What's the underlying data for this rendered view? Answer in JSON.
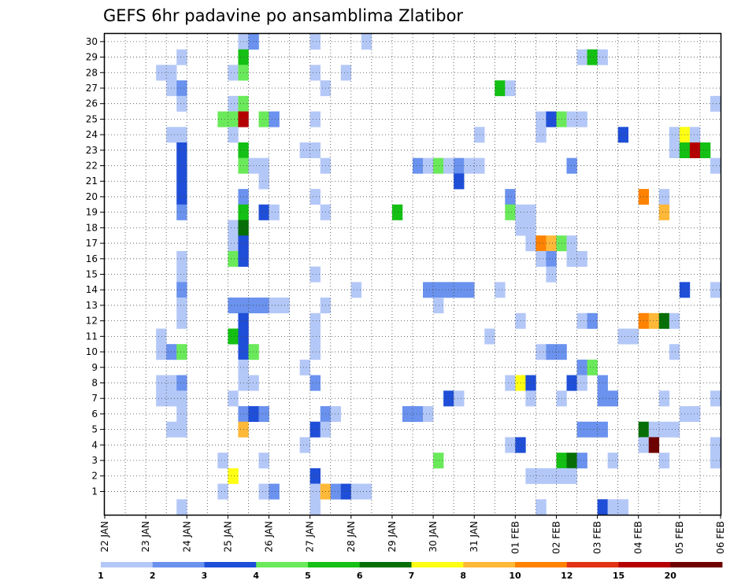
{
  "chart_data": {
    "type": "heatmap",
    "title": "GEFS 6hr padavine po ansamblima Zlatibor",
    "xlabel": "",
    "ylabel": "",
    "x_tick_labels": [
      "22 JAN",
      "23 JAN",
      "24 JAN",
      "25 JAN",
      "26 JAN",
      "27 JAN",
      "28 JAN",
      "29 JAN",
      "30 JAN",
      "31 JAN",
      "01 FEB",
      "02 FEB",
      "03 FEB",
      "04 FEB",
      "05 FEB",
      "06 FEB"
    ],
    "y_tick_labels": [
      "1",
      "2",
      "3",
      "4",
      "5",
      "6",
      "7",
      "8",
      "9",
      "10",
      "11",
      "12",
      "13",
      "14",
      "15",
      "16",
      "17",
      "18",
      "19",
      "20",
      "21",
      "22",
      "23",
      "24",
      "25",
      "26",
      "27",
      "28",
      "29",
      "30"
    ],
    "x_range": [
      0,
      60
    ],
    "y_range": [
      0,
      30
    ],
    "grid": true,
    "x_unit": "6-hour step from 22 JAN",
    "y_unit": "ensemble member",
    "legend": {
      "position": "bottom",
      "colors": [
        "#b4c8f8",
        "#6a92ee",
        "#1f4fd8",
        "#6aea5a",
        "#14c014",
        "#056e05",
        "#ffff14",
        "#ffb838",
        "#ff8200",
        "#e23214",
        "#b40000",
        "#6e0000"
      ],
      "labels": [
        "1",
        "2",
        "3",
        "4",
        "5",
        "6",
        "7",
        "8",
        "10",
        "12",
        "15",
        "20"
      ]
    },
    "cells": [
      [
        30,
        13,
        1
      ],
      [
        30,
        14,
        2
      ],
      [
        30,
        20,
        1
      ],
      [
        30,
        25,
        1
      ],
      [
        29,
        7,
        1
      ],
      [
        29,
        13,
        5
      ],
      [
        29,
        46,
        1
      ],
      [
        29,
        47,
        5
      ],
      [
        29,
        48,
        1
      ],
      [
        28,
        5,
        1
      ],
      [
        28,
        6,
        1
      ],
      [
        28,
        12,
        1
      ],
      [
        28,
        13,
        4
      ],
      [
        28,
        20,
        1
      ],
      [
        28,
        23,
        1
      ],
      [
        27,
        6,
        1
      ],
      [
        27,
        7,
        2
      ],
      [
        27,
        21,
        1
      ],
      [
        27,
        38,
        5
      ],
      [
        27,
        39,
        1
      ],
      [
        26,
        7,
        1
      ],
      [
        26,
        12,
        1
      ],
      [
        26,
        13,
        4
      ],
      [
        26,
        59,
        1
      ],
      [
        25,
        11,
        4
      ],
      [
        25,
        12,
        4
      ],
      [
        25,
        13,
        11
      ],
      [
        25,
        15,
        4
      ],
      [
        25,
        16,
        2
      ],
      [
        25,
        20,
        1
      ],
      [
        25,
        42,
        1
      ],
      [
        25,
        43,
        3
      ],
      [
        25,
        44,
        4
      ],
      [
        25,
        45,
        1
      ],
      [
        25,
        46,
        1
      ],
      [
        24,
        6,
        1
      ],
      [
        24,
        7,
        1
      ],
      [
        24,
        12,
        1
      ],
      [
        24,
        36,
        1
      ],
      [
        24,
        42,
        1
      ],
      [
        24,
        50,
        3
      ],
      [
        24,
        55,
        1
      ],
      [
        24,
        56,
        7
      ],
      [
        24,
        57,
        1
      ],
      [
        23,
        7,
        3
      ],
      [
        23,
        13,
        5
      ],
      [
        23,
        19,
        1
      ],
      [
        23,
        20,
        1
      ],
      [
        23,
        55,
        1
      ],
      [
        23,
        56,
        5
      ],
      [
        23,
        57,
        11
      ],
      [
        23,
        58,
        5
      ],
      [
        22,
        7,
        3
      ],
      [
        22,
        13,
        4
      ],
      [
        22,
        14,
        1
      ],
      [
        22,
        15,
        1
      ],
      [
        22,
        21,
        1
      ],
      [
        22,
        30,
        2
      ],
      [
        22,
        31,
        1
      ],
      [
        22,
        32,
        4
      ],
      [
        22,
        33,
        1
      ],
      [
        22,
        34,
        2
      ],
      [
        22,
        35,
        1
      ],
      [
        22,
        36,
        1
      ],
      [
        22,
        45,
        2
      ],
      [
        22,
        59,
        1
      ],
      [
        21,
        7,
        3
      ],
      [
        21,
        15,
        1
      ],
      [
        21,
        34,
        3
      ],
      [
        20,
        7,
        3
      ],
      [
        20,
        13,
        2
      ],
      [
        20,
        20,
        1
      ],
      [
        20,
        39,
        2
      ],
      [
        20,
        52,
        9
      ],
      [
        20,
        54,
        1
      ],
      [
        19,
        7,
        2
      ],
      [
        19,
        13,
        5
      ],
      [
        19,
        15,
        3
      ],
      [
        19,
        16,
        1
      ],
      [
        19,
        21,
        1
      ],
      [
        19,
        28,
        5
      ],
      [
        19,
        39,
        4
      ],
      [
        19,
        40,
        1
      ],
      [
        19,
        41,
        1
      ],
      [
        19,
        54,
        8
      ],
      [
        18,
        12,
        1
      ],
      [
        18,
        13,
        6
      ],
      [
        18,
        40,
        1
      ],
      [
        18,
        41,
        1
      ],
      [
        17,
        12,
        1
      ],
      [
        17,
        13,
        3
      ],
      [
        17,
        41,
        1
      ],
      [
        17,
        42,
        9
      ],
      [
        17,
        43,
        8
      ],
      [
        17,
        44,
        4
      ],
      [
        17,
        45,
        1
      ],
      [
        16,
        7,
        1
      ],
      [
        16,
        12,
        4
      ],
      [
        16,
        13,
        3
      ],
      [
        16,
        42,
        1
      ],
      [
        16,
        43,
        2
      ],
      [
        16,
        45,
        1
      ],
      [
        16,
        46,
        1
      ],
      [
        15,
        7,
        1
      ],
      [
        15,
        20,
        1
      ],
      [
        15,
        43,
        1
      ],
      [
        14,
        7,
        2
      ],
      [
        14,
        24,
        1
      ],
      [
        14,
        31,
        2
      ],
      [
        14,
        32,
        2
      ],
      [
        14,
        33,
        2
      ],
      [
        14,
        34,
        2
      ],
      [
        14,
        35,
        2
      ],
      [
        14,
        38,
        1
      ],
      [
        14,
        56,
        3
      ],
      [
        14,
        59,
        1
      ],
      [
        13,
        7,
        1
      ],
      [
        13,
        12,
        2
      ],
      [
        13,
        13,
        2
      ],
      [
        13,
        14,
        2
      ],
      [
        13,
        15,
        2
      ],
      [
        13,
        16,
        1
      ],
      [
        13,
        17,
        1
      ],
      [
        13,
        21,
        1
      ],
      [
        13,
        32,
        1
      ],
      [
        12,
        7,
        1
      ],
      [
        12,
        13,
        3
      ],
      [
        12,
        20,
        1
      ],
      [
        12,
        40,
        1
      ],
      [
        12,
        46,
        1
      ],
      [
        12,
        47,
        2
      ],
      [
        12,
        52,
        9
      ],
      [
        12,
        53,
        8
      ],
      [
        12,
        54,
        6
      ],
      [
        12,
        55,
        1
      ],
      [
        11,
        5,
        1
      ],
      [
        11,
        12,
        5
      ],
      [
        11,
        13,
        3
      ],
      [
        11,
        20,
        1
      ],
      [
        11,
        37,
        1
      ],
      [
        11,
        50,
        1
      ],
      [
        11,
        51,
        1
      ],
      [
        10,
        5,
        1
      ],
      [
        10,
        6,
        2
      ],
      [
        10,
        7,
        4
      ],
      [
        10,
        13,
        3
      ],
      [
        10,
        14,
        4
      ],
      [
        10,
        20,
        1
      ],
      [
        10,
        42,
        1
      ],
      [
        10,
        43,
        2
      ],
      [
        10,
        44,
        2
      ],
      [
        10,
        55,
        1
      ],
      [
        9,
        13,
        1
      ],
      [
        9,
        19,
        1
      ],
      [
        9,
        46,
        2
      ],
      [
        9,
        47,
        4
      ],
      [
        8,
        5,
        1
      ],
      [
        8,
        6,
        1
      ],
      [
        8,
        7,
        2
      ],
      [
        8,
        13,
        1
      ],
      [
        8,
        14,
        1
      ],
      [
        8,
        20,
        2
      ],
      [
        8,
        39,
        1
      ],
      [
        8,
        40,
        7
      ],
      [
        8,
        41,
        3
      ],
      [
        8,
        45,
        3
      ],
      [
        8,
        46,
        1
      ],
      [
        8,
        48,
        2
      ],
      [
        7,
        5,
        1
      ],
      [
        7,
        6,
        1
      ],
      [
        7,
        7,
        1
      ],
      [
        7,
        12,
        1
      ],
      [
        7,
        33,
        3
      ],
      [
        7,
        34,
        1
      ],
      [
        7,
        41,
        1
      ],
      [
        7,
        44,
        1
      ],
      [
        7,
        48,
        2
      ],
      [
        7,
        49,
        2
      ],
      [
        7,
        54,
        1
      ],
      [
        7,
        59,
        1
      ],
      [
        6,
        7,
        1
      ],
      [
        6,
        13,
        2
      ],
      [
        6,
        14,
        3
      ],
      [
        6,
        15,
        2
      ],
      [
        6,
        21,
        2
      ],
      [
        6,
        22,
        1
      ],
      [
        6,
        29,
        2
      ],
      [
        6,
        30,
        2
      ],
      [
        6,
        31,
        1
      ],
      [
        6,
        56,
        1
      ],
      [
        6,
        57,
        1
      ],
      [
        5,
        6,
        1
      ],
      [
        5,
        7,
        1
      ],
      [
        5,
        13,
        8
      ],
      [
        5,
        20,
        3
      ],
      [
        5,
        21,
        1
      ],
      [
        5,
        46,
        2
      ],
      [
        5,
        47,
        2
      ],
      [
        5,
        48,
        2
      ],
      [
        5,
        52,
        6
      ],
      [
        5,
        53,
        1
      ],
      [
        5,
        54,
        1
      ],
      [
        5,
        55,
        1
      ],
      [
        4,
        19,
        1
      ],
      [
        4,
        39,
        1
      ],
      [
        4,
        40,
        3
      ],
      [
        4,
        52,
        1
      ],
      [
        4,
        53,
        12
      ],
      [
        4,
        59,
        1
      ],
      [
        3,
        11,
        1
      ],
      [
        3,
        15,
        1
      ],
      [
        3,
        32,
        4
      ],
      [
        3,
        44,
        5
      ],
      [
        3,
        45,
        6
      ],
      [
        3,
        46,
        2
      ],
      [
        3,
        49,
        1
      ],
      [
        3,
        54,
        1
      ],
      [
        3,
        59,
        1
      ],
      [
        2,
        12,
        7
      ],
      [
        2,
        20,
        3
      ],
      [
        2,
        41,
        1
      ],
      [
        2,
        42,
        1
      ],
      [
        2,
        43,
        1
      ],
      [
        2,
        44,
        1
      ],
      [
        2,
        45,
        1
      ],
      [
        1,
        11,
        1
      ],
      [
        1,
        15,
        1
      ],
      [
        1,
        16,
        2
      ],
      [
        1,
        20,
        1
      ],
      [
        1,
        21,
        8
      ],
      [
        1,
        22,
        2
      ],
      [
        1,
        23,
        3
      ],
      [
        1,
        24,
        1
      ],
      [
        1,
        25,
        1
      ],
      [
        0,
        7,
        1
      ],
      [
        0,
        20,
        1
      ],
      [
        0,
        42,
        1
      ],
      [
        0,
        48,
        3
      ],
      [
        0,
        49,
        1
      ],
      [
        0,
        50,
        1
      ]
    ]
  }
}
